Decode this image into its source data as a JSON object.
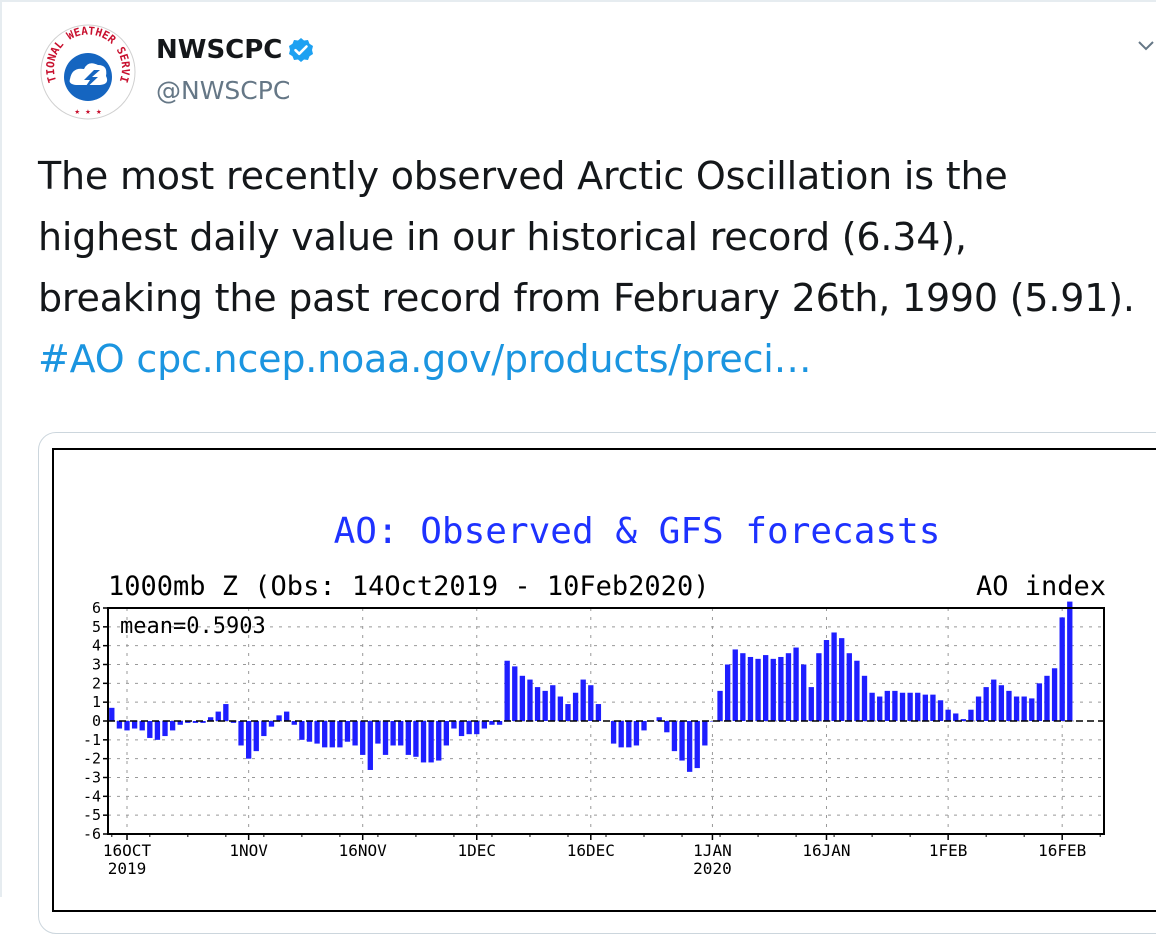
{
  "account": {
    "display_name": "NWSCPC",
    "handle": "@NWSCPC",
    "avatar_ring_text": "NATIONAL WEATHER SERVICE",
    "verified_icon": "verified-badge-icon",
    "caret_icon": "chevron-down-icon"
  },
  "tweet": {
    "text": "The most recently observed Arctic Oscillation is the highest daily value in our historical record (6.34), breaking the past record from February 26th, 1990 (5.91).",
    "hashtag": "#AO",
    "link": "cpc.ncep.noaa.gov/products/preci…"
  },
  "colors": {
    "link": "#1b95e0",
    "bar": "#1e1eff",
    "title": "#1e32ff",
    "text": "#14171a",
    "handle": "#657786"
  },
  "chart_data": {
    "type": "bar",
    "title": "AO: Observed & GFS forecasts",
    "subtitle": "1000mb Z (Obs: 14Oct2019 - 10Feb2020)",
    "right_label": "AO index",
    "annotation": "mean=0.5903",
    "ylim": [
      -6,
      6
    ],
    "y_ticks": [
      6,
      5,
      4,
      3,
      2,
      1,
      0,
      -1,
      -2,
      -3,
      -4,
      -5,
      -6
    ],
    "x_tick_labels": [
      {
        "label": "16OCT",
        "sub": "2019",
        "day": 2
      },
      {
        "label": "1NOV",
        "sub": "",
        "day": 18
      },
      {
        "label": "16NOV",
        "sub": "",
        "day": 33
      },
      {
        "label": "1DEC",
        "sub": "",
        "day": 48
      },
      {
        "label": "16DEC",
        "sub": "",
        "day": 63
      },
      {
        "label": "1JAN",
        "sub": "2020",
        "day": 79
      },
      {
        "label": "16JAN",
        "sub": "",
        "day": 94
      },
      {
        "label": "1FEB",
        "sub": "",
        "day": 110
      },
      {
        "label": "16FEB",
        "sub": "",
        "day": 125
      }
    ],
    "x_start": "2019-10-14",
    "x_end": "2020-02-21",
    "series": [
      {
        "values": [
          0.7,
          -0.4,
          -0.5,
          -0.4,
          -0.5,
          -0.9,
          -1.0,
          -0.8,
          -0.5,
          -0.2,
          -0.1,
          -0.1,
          -0.1,
          0.2,
          0.5,
          0.9,
          -0.1,
          -1.3,
          -2.0,
          -1.6,
          -0.8,
          -0.3,
          0.3,
          0.5,
          -0.2,
          -1.0,
          -1.1,
          -1.2,
          -1.4,
          -1.4,
          -1.4,
          -1.1,
          -1.3,
          -1.8,
          -2.6,
          -1.2,
          -1.8,
          -1.3,
          -1.3,
          -1.8,
          -1.9,
          -2.2,
          -2.2,
          -2.1,
          -1.3,
          -0.4,
          -0.8,
          -0.7,
          -0.7,
          -0.4,
          -0.2,
          -0.2,
          3.2,
          2.9,
          2.4,
          2.2,
          1.8,
          1.6,
          1.9,
          1.3,
          0.9,
          1.5,
          2.2,
          1.9,
          0.9,
          0.0,
          -1.2,
          -1.4,
          -1.4,
          -1.3,
          -0.5,
          0.0,
          0.2,
          -0.6,
          -1.6,
          -2.1,
          -2.7,
          -2.5,
          -1.3,
          0.0,
          1.6,
          3.0,
          3.8,
          3.6,
          3.4,
          3.3,
          3.5,
          3.3,
          3.4,
          3.6,
          3.9,
          3.0,
          1.8,
          3.6,
          4.3,
          4.7,
          4.4,
          3.6,
          3.2,
          2.4,
          1.5,
          1.3,
          1.6,
          1.6,
          1.5,
          1.5,
          1.5,
          1.4,
          1.4,
          1.1,
          0.6,
          0.4,
          0.1,
          0.6,
          1.3,
          1.8,
          2.2,
          1.9,
          1.6,
          1.3,
          1.3,
          1.2,
          2.0,
          2.4,
          2.8,
          5.5,
          6.34
        ]
      }
    ]
  }
}
